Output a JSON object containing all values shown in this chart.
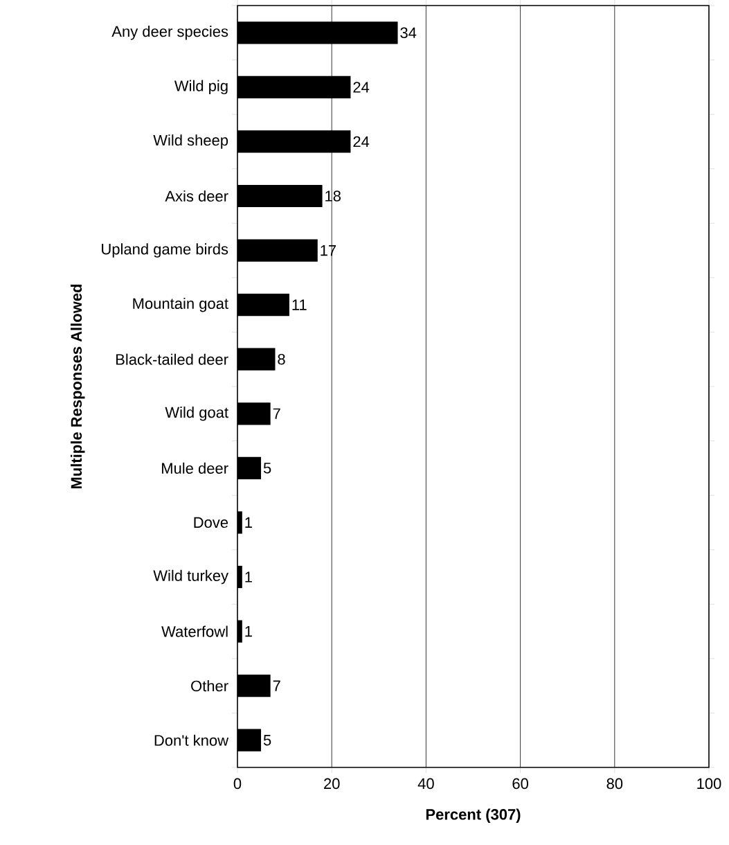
{
  "chart_data": {
    "type": "bar",
    "orientation": "horizontal",
    "categories": [
      "Any deer species",
      "Wild pig",
      "Wild sheep",
      "Axis deer",
      "Upland game birds",
      "Mountain goat",
      "Black-tailed deer",
      "Wild goat",
      "Mule deer",
      "Dove",
      "Wild turkey",
      "Waterfowl",
      "Other",
      "Don't know"
    ],
    "values": [
      34,
      24,
      24,
      18,
      17,
      11,
      8,
      7,
      5,
      1,
      1,
      1,
      7,
      5
    ],
    "color": "#000000",
    "data_labels": true,
    "xlabel": "Percent (307)",
    "ylabel": "Multiple Responses Allowed",
    "xlim": [
      0,
      100
    ],
    "xticks": [
      0,
      20,
      40,
      60,
      80,
      100
    ],
    "grid": "x"
  }
}
